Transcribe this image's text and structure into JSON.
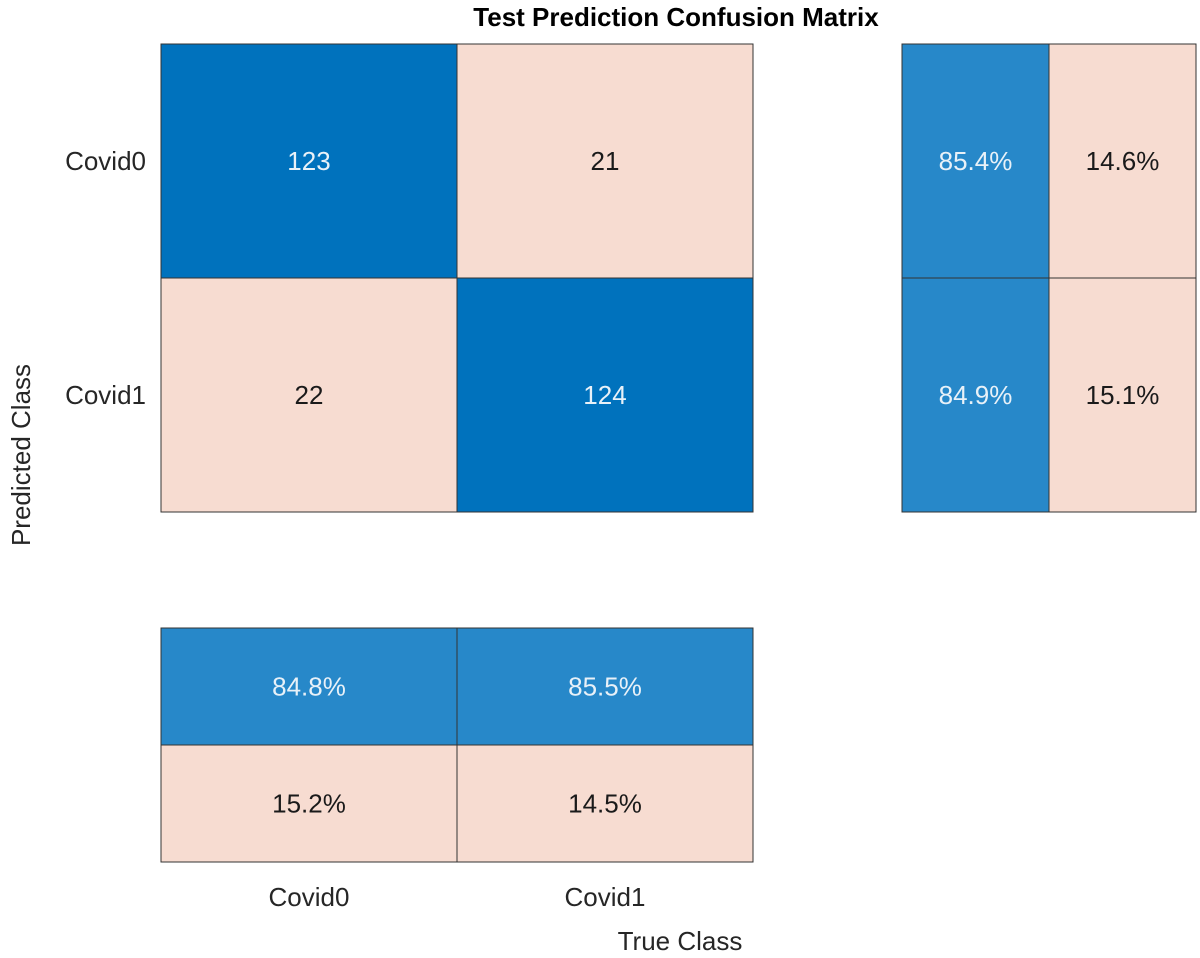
{
  "chart_data": {
    "type": "heatmap",
    "title": "Test Prediction Confusion Matrix",
    "xlabel": "True Class",
    "ylabel": "Predicted Class",
    "row_labels": [
      "Covid0",
      "Covid1"
    ],
    "col_labels": [
      "Covid0",
      "Covid1"
    ],
    "matrix": [
      [
        123,
        21
      ],
      [
        22,
        124
      ]
    ],
    "row_summary": [
      [
        "85.4%",
        "14.6%"
      ],
      [
        "84.9%",
        "15.1%"
      ]
    ],
    "col_summary": [
      [
        "84.8%",
        "85.5%"
      ],
      [
        "15.2%",
        "14.5%"
      ]
    ],
    "colors": {
      "correct": "#0072BD",
      "incorrect": "#F7DCD1",
      "summary_correct": "#2788C9",
      "summary_incorrect": "#F7DCD1",
      "text_light": "#E8F1F8",
      "text_dark": "#1a1a1a",
      "border": "#333333"
    }
  }
}
